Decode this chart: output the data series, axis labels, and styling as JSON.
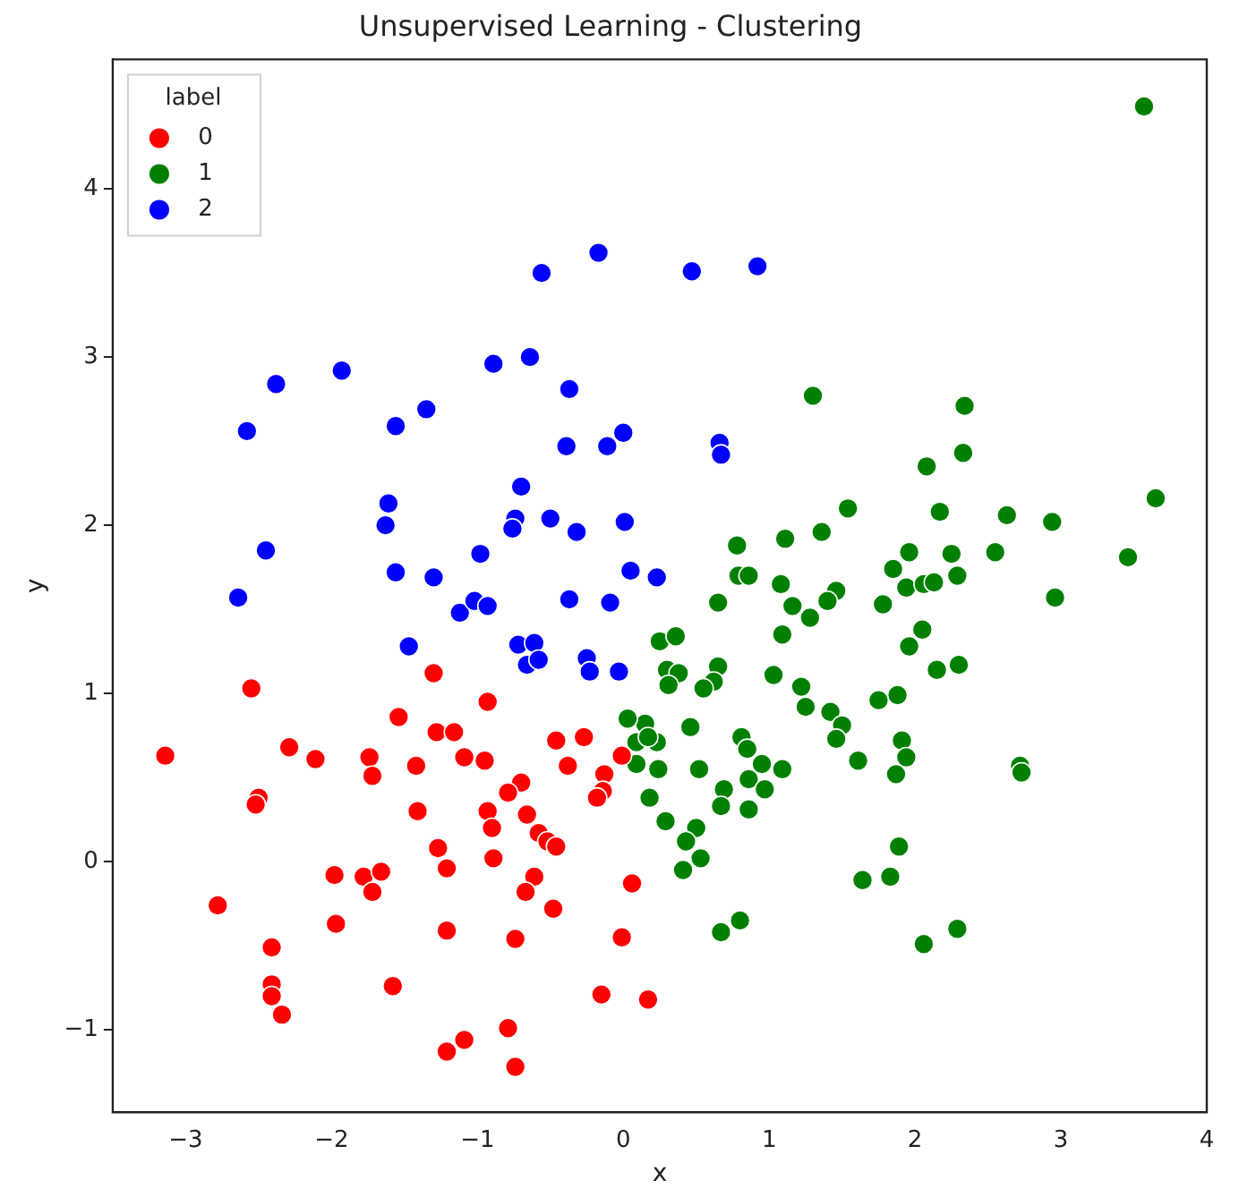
{
  "chart_data": {
    "type": "scatter",
    "title": "Unsupervised Learning - Clustering",
    "xlabel": "x",
    "ylabel": "y",
    "legend_title": "label",
    "legend": "top left",
    "marker": "circle",
    "xlim": [
      -3.5,
      4
    ],
    "ylim": [
      -1.49,
      4.77
    ],
    "xticks": [
      -3,
      -2,
      -1,
      0,
      1,
      2,
      3,
      4
    ],
    "yticks": [
      -1,
      0,
      1,
      2,
      3,
      4
    ],
    "series": [
      {
        "name": "0",
        "color": "#ff0000",
        "x": [
          -1.3,
          -2.55,
          -0.93,
          -1.54,
          -1.28,
          -1.16,
          -0.46,
          -0.27,
          -3.14,
          -2.29,
          -2.11,
          -1.74,
          -1.72,
          -1.42,
          -1.09,
          -0.95,
          -0.38,
          -0.01,
          -0.13,
          -0.14,
          -0.18,
          -0.7,
          -0.79,
          -2.5,
          -2.52,
          -1.41,
          -0.93,
          -0.9,
          -0.66,
          -0.58,
          -0.52,
          -0.46,
          -1.27,
          -1.21,
          -0.89,
          -1.98,
          -1.78,
          -1.66,
          -1.72,
          -0.61,
          -0.67,
          -0.48,
          0.06,
          -2.78,
          -1.97,
          -1.21,
          -0.74,
          -0.01,
          -2.41,
          -2.41,
          -2.41,
          -2.34,
          -1.58,
          -0.15,
          0.17,
          -0.79,
          -1.09,
          -1.21,
          -0.74
        ],
        "values": [
          1.12,
          1.03,
          0.95,
          0.86,
          0.77,
          0.77,
          0.72,
          0.74,
          0.63,
          0.68,
          0.61,
          0.62,
          0.51,
          0.57,
          0.62,
          0.6,
          0.57,
          0.63,
          0.52,
          0.42,
          0.38,
          0.47,
          0.41,
          0.38,
          0.34,
          0.3,
          0.3,
          0.2,
          0.28,
          0.17,
          0.12,
          0.09,
          0.08,
          -0.04,
          0.02,
          -0.08,
          -0.09,
          -0.06,
          -0.18,
          -0.09,
          -0.18,
          -0.28,
          -0.13,
          -0.26,
          -0.37,
          -0.41,
          -0.46,
          -0.45,
          -0.51,
          -0.73,
          -0.8,
          -0.91,
          -0.74,
          -0.79,
          -0.82,
          -0.99,
          -1.06,
          -1.13,
          -1.22
        ]
      },
      {
        "name": "1",
        "color": "#008000",
        "x": [
          3.57,
          1.3,
          2.34,
          2.08,
          2.33,
          3.65,
          1.54,
          2.17,
          2.63,
          2.94,
          0.78,
          1.11,
          1.36,
          1.96,
          2.25,
          2.55,
          1.85,
          3.46,
          0.79,
          0.86,
          1.08,
          1.94,
          2.06,
          2.13,
          2.29,
          1.46,
          1.4,
          0.65,
          1.16,
          1.28,
          1.78,
          2.96,
          1.09,
          2.05,
          1.96,
          0.25,
          0.36,
          0.65,
          0.3,
          0.38,
          0.31,
          0.62,
          0.55,
          1.03,
          1.22,
          1.25,
          2.15,
          2.3,
          1.75,
          1.88,
          1.42,
          1.5,
          1.46,
          1.91,
          1.94,
          1.61,
          1.87,
          2.72,
          2.73,
          0.15,
          0.23,
          0.46,
          0.81,
          0.85,
          0.95,
          1.09,
          0.24,
          0.52,
          0.86,
          0.97,
          0.69,
          0.67,
          0.86,
          0.18,
          0.29,
          0.5,
          0.43,
          0.53,
          0.41,
          1.89,
          1.64,
          1.83,
          0.8,
          0.67,
          2.29,
          2.06,
          0.03,
          0.09,
          0.17,
          0.09
        ],
        "values": [
          4.49,
          2.77,
          2.71,
          2.35,
          2.43,
          2.16,
          2.1,
          2.08,
          2.06,
          2.02,
          1.88,
          1.92,
          1.96,
          1.84,
          1.83,
          1.84,
          1.74,
          1.81,
          1.7,
          1.7,
          1.65,
          1.63,
          1.65,
          1.66,
          1.7,
          1.61,
          1.55,
          1.54,
          1.52,
          1.45,
          1.53,
          1.57,
          1.35,
          1.38,
          1.28,
          1.31,
          1.34,
          1.16,
          1.14,
          1.12,
          1.05,
          1.07,
          1.03,
          1.11,
          1.04,
          0.92,
          1.14,
          1.17,
          0.96,
          0.99,
          0.89,
          0.81,
          0.73,
          0.72,
          0.62,
          0.6,
          0.52,
          0.57,
          0.53,
          0.82,
          0.71,
          0.8,
          0.74,
          0.67,
          0.58,
          0.55,
          0.55,
          0.55,
          0.49,
          0.43,
          0.43,
          0.33,
          0.31,
          0.38,
          0.24,
          0.2,
          0.12,
          0.02,
          -0.05,
          0.09,
          -0.11,
          -0.09,
          -0.35,
          -0.42,
          -0.4,
          -0.49,
          0.85,
          0.71,
          0.74,
          0.58
        ]
      },
      {
        "name": "2",
        "color": "#0000ff",
        "x": [
          -0.17,
          -0.56,
          0.47,
          0.92,
          -0.64,
          -0.89,
          -1.93,
          -2.38,
          -0.37,
          -1.35,
          -1.56,
          -2.58,
          0.0,
          -0.39,
          -0.11,
          0.66,
          0.67,
          -0.7,
          -1.61,
          -1.63,
          -0.74,
          -0.76,
          -0.5,
          -0.32,
          0.01,
          -2.45,
          -0.98,
          -1.56,
          -1.3,
          0.05,
          0.23,
          -2.64,
          -1.12,
          -1.02,
          -0.93,
          -0.37,
          -0.09,
          -1.47,
          -0.72,
          -0.61,
          -0.66,
          -0.58,
          -0.25,
          -0.23,
          -0.03
        ],
        "values": [
          3.62,
          3.5,
          3.51,
          3.54,
          3.0,
          2.96,
          2.92,
          2.84,
          2.81,
          2.69,
          2.59,
          2.56,
          2.55,
          2.47,
          2.47,
          2.49,
          2.42,
          2.23,
          2.13,
          2.0,
          2.04,
          1.98,
          2.04,
          1.96,
          2.02,
          1.85,
          1.83,
          1.72,
          1.69,
          1.73,
          1.69,
          1.57,
          1.48,
          1.55,
          1.52,
          1.56,
          1.54,
          1.28,
          1.29,
          1.3,
          1.17,
          1.2,
          1.21,
          1.13,
          1.13
        ]
      }
    ]
  }
}
